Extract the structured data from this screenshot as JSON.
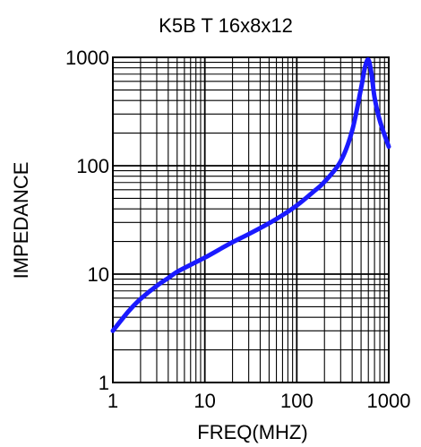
{
  "chart_data": {
    "type": "line",
    "title": "K5B T 16x8x12",
    "xlabel": "FREQ(MHZ)",
    "ylabel": "IMPEDANCE",
    "x_scale": "log",
    "y_scale": "log",
    "xlim": [
      1,
      1000
    ],
    "ylim": [
      1,
      1000
    ],
    "x_ticks": [
      1,
      10,
      100,
      1000
    ],
    "x_tick_labels": [
      "1",
      "10",
      "100",
      "1000"
    ],
    "y_ticks": [
      1,
      10,
      100,
      1000
    ],
    "y_tick_labels": [
      "1",
      "10",
      "100",
      "1000"
    ],
    "grid": true,
    "series": [
      {
        "color": "#1a1aff",
        "x": [
          1,
          1.5,
          2,
          3,
          4,
          5,
          7,
          10,
          15,
          20,
          30,
          50,
          70,
          100,
          150,
          200,
          300,
          400,
          500,
          550,
          600,
          650,
          700,
          800,
          1000
        ],
        "y": [
          3,
          4.6,
          5.9,
          7.8,
          9.2,
          10.5,
          12.2,
          14.2,
          17.2,
          19.7,
          23.4,
          29.5,
          35,
          43,
          57,
          71,
          110,
          210,
          520,
          800,
          950,
          700,
          430,
          260,
          150
        ]
      }
    ]
  }
}
